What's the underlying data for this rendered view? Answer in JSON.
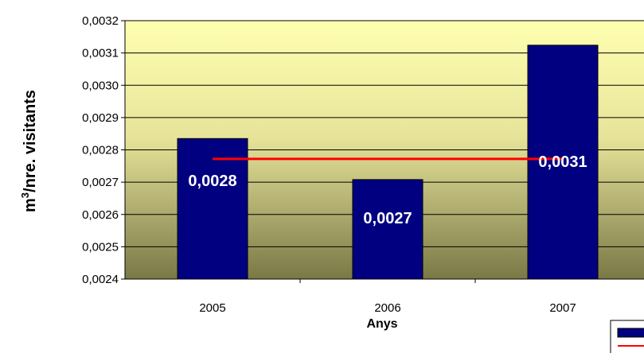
{
  "chart_data": {
    "type": "bar",
    "categories": [
      "2005",
      "2006",
      "2007"
    ],
    "values": [
      0.002835,
      0.002708,
      0.003124
    ],
    "data_labels": [
      "0,0028",
      "0,0027",
      "0,0031"
    ],
    "average_line": {
      "value": 0.002772
    },
    "ylim": [
      0.0024,
      0.0032
    ],
    "yticks": [
      0.0024,
      0.0025,
      0.0026,
      0.0027,
      0.0028,
      0.0029,
      0.003,
      0.0031,
      0.0032
    ],
    "ytick_labels": [
      "0,0024",
      "0,0025",
      "0,0026",
      "0,0027",
      "0,0028",
      "0,0029",
      "0,0030",
      "0,0031",
      "0,0032"
    ],
    "xlabel": "Anys",
    "ylabel": "m³/nre. visitants",
    "ylabel_base": "m",
    "ylabel_sup": "3",
    "ylabel_rest": "/nre. visitants",
    "grid": true,
    "legend_position": "bottom-right",
    "colors": {
      "bar": "#000080",
      "average_line": "#ff0000",
      "plot_bg_top": "#ffffb0",
      "plot_bg_bottom": "#7a7846",
      "gridline": "#000000"
    }
  }
}
